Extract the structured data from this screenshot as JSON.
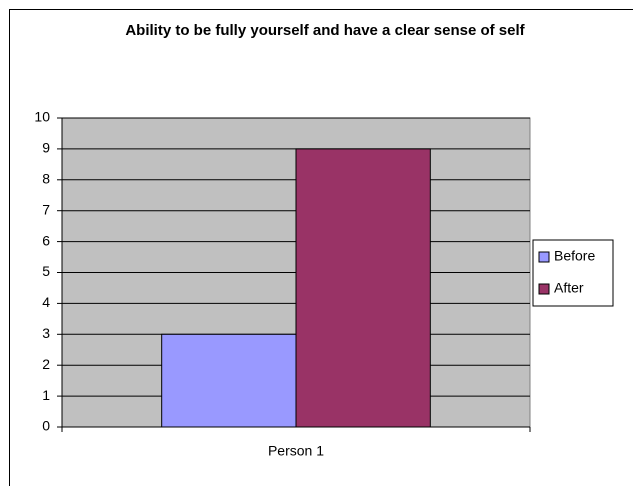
{
  "chart_data": {
    "type": "bar",
    "title": "Ability to be fully yourself and have a clear sense of self",
    "categories": [
      "Person 1"
    ],
    "series": [
      {
        "name": "Before",
        "color": "#9999ff",
        "values": [
          3
        ]
      },
      {
        "name": "After",
        "color": "#993366",
        "values": [
          9
        ]
      }
    ],
    "ylim": [
      0,
      10
    ],
    "yticks": [
      0,
      1,
      2,
      3,
      4,
      5,
      6,
      7,
      8,
      9,
      10
    ],
    "grid": true,
    "legend": "right"
  }
}
